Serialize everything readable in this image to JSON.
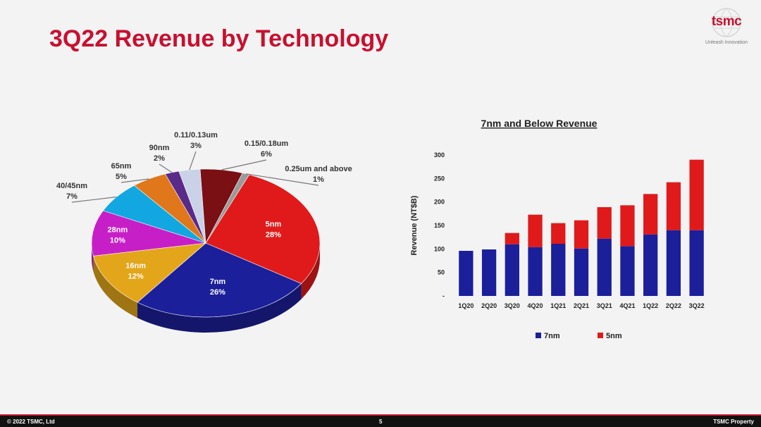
{
  "slide": {
    "title": "3Q22 Revenue by Technology",
    "logo_text": "tsmc",
    "logo_tagline": "Unleash Innovation",
    "page_number": "5",
    "copyright": "© 2022 TSMC, Ltd",
    "property": "TSMC Property"
  },
  "chart_data": [
    {
      "type": "pie",
      "title": "",
      "slices": [
        {
          "label": "5nm",
          "value": 28,
          "display": "28%",
          "color": "#e01a1a"
        },
        {
          "label": "7nm",
          "value": 26,
          "display": "26%",
          "color": "#1c1f9a"
        },
        {
          "label": "16nm",
          "value": 12,
          "display": "12%",
          "color": "#e3a61a"
        },
        {
          "label": "28nm",
          "value": 10,
          "display": "10%",
          "color": "#c71fc7"
        },
        {
          "label": "40/45nm",
          "value": 7,
          "display": "7%",
          "color": "#12a7e0"
        },
        {
          "label": "65nm",
          "value": 5,
          "display": "5%",
          "color": "#e0771a"
        },
        {
          "label": "90nm",
          "value": 2,
          "display": "2%",
          "color": "#5a2a8a"
        },
        {
          "label": "0.11/0.13um",
          "value": 3,
          "display": "3%",
          "color": "#c9d2e6"
        },
        {
          "label": "0.15/0.18um",
          "value": 6,
          "display": "6%",
          "color": "#7a0f14"
        },
        {
          "label": "0.25um and above",
          "value": 1,
          "display": "1%",
          "color": "#9a9a9a"
        }
      ]
    },
    {
      "type": "bar",
      "stacked": true,
      "title": "7nm and Below Revenue",
      "xlabel": "",
      "ylabel": "Revenue (NT$B)",
      "ylim": [
        0,
        300
      ],
      "yticks": [
        0,
        50,
        100,
        150,
        200,
        250,
        300
      ],
      "yticklabels": [
        "-",
        "50",
        "100",
        "150",
        "200",
        "250",
        "300"
      ],
      "categories": [
        "1Q20",
        "2Q20",
        "3Q20",
        "4Q20",
        "1Q21",
        "2Q21",
        "3Q21",
        "4Q21",
        "1Q22",
        "2Q22",
        "3Q22"
      ],
      "series": [
        {
          "name": "7nm",
          "color": "#1c1f9a",
          "values": [
            96,
            99,
            110,
            104,
            111,
            101,
            122,
            106,
            131,
            140,
            140
          ]
        },
        {
          "name": "5nm",
          "color": "#e01a1a",
          "values": [
            0,
            0,
            24,
            69,
            44,
            60,
            67,
            87,
            86,
            102,
            150
          ]
        }
      ],
      "legend": "bottom",
      "grid": false
    }
  ]
}
